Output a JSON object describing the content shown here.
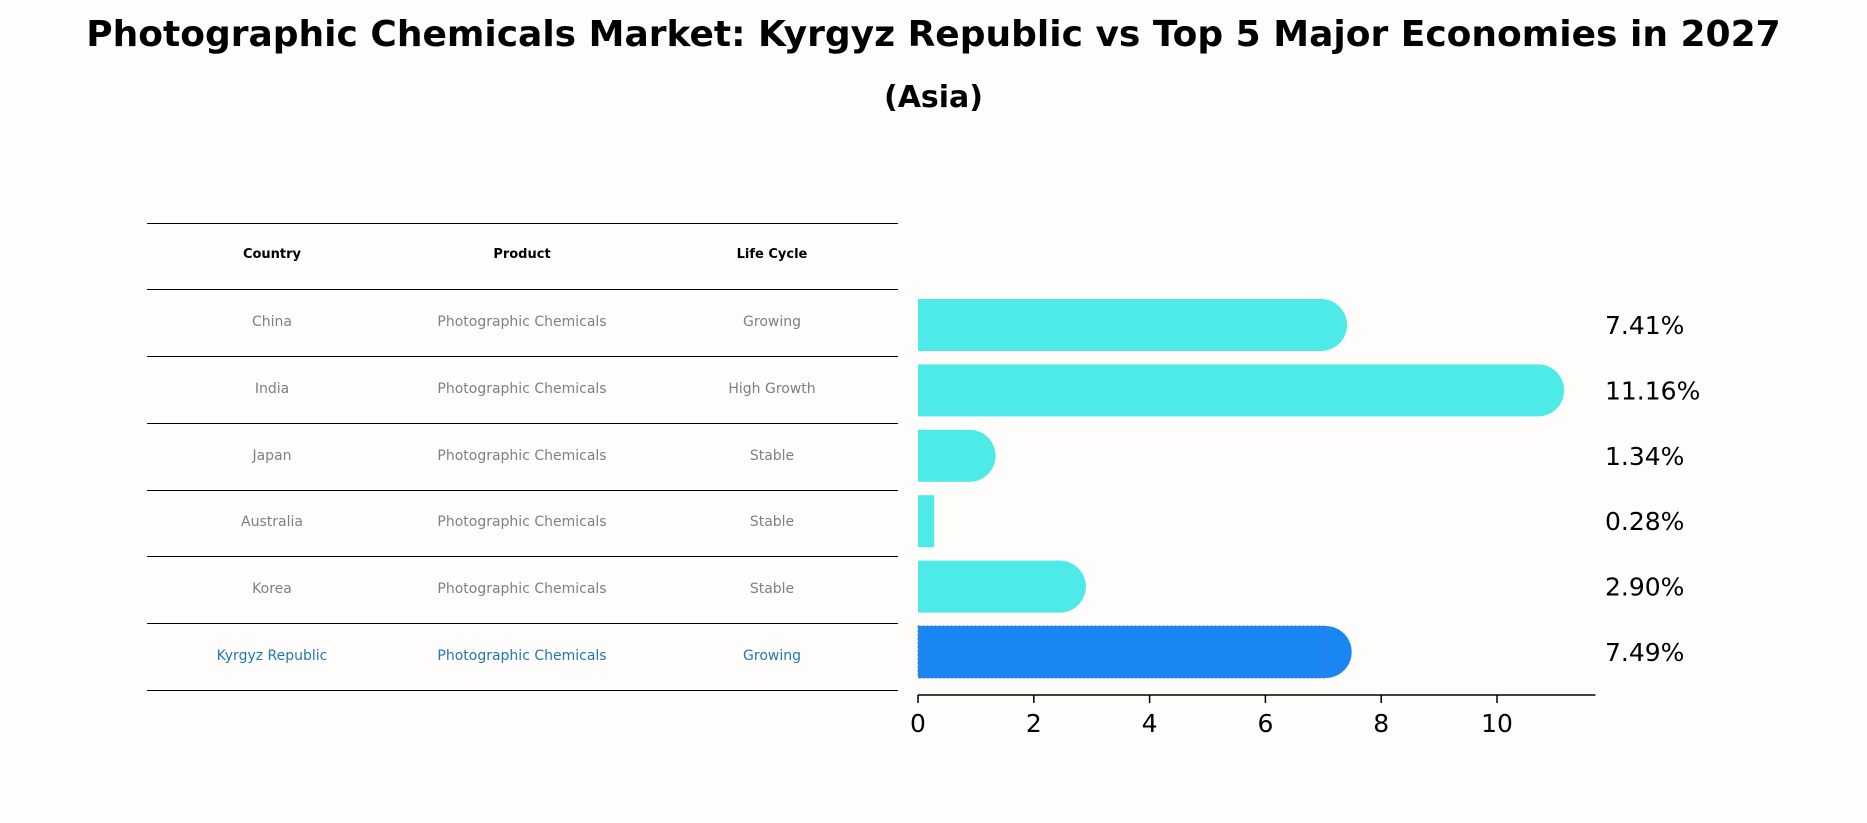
{
  "title": "Photographic Chemicals Market: Kyrgyz Republic vs Top 5 Major Economies in 2027",
  "subtitle": "(Asia)",
  "table": {
    "headers": [
      "Country",
      "Product",
      "Life Cycle"
    ],
    "rows": [
      [
        "China",
        "Photographic Chemicals",
        "Growing"
      ],
      [
        "India",
        "Photographic Chemicals",
        "High Growth"
      ],
      [
        "Japan",
        "Photographic Chemicals",
        "Stable"
      ],
      [
        "Australia",
        "Photographic Chemicals",
        "Stable"
      ],
      [
        "Korea",
        "Photographic Chemicals",
        "Stable"
      ],
      [
        "Kyrgyz Republic",
        "Photographic Chemicals",
        "Growing"
      ]
    ],
    "highlight_row": 5,
    "highlight_color": "#1f77b4",
    "text_color": "#808080"
  },
  "chart_data": {
    "type": "bar",
    "orientation": "horizontal",
    "categories": [
      "China",
      "India",
      "Japan",
      "Australia",
      "Korea",
      "Kyrgyz Republic"
    ],
    "values": [
      7.41,
      11.16,
      1.34,
      0.28,
      2.9,
      7.49
    ],
    "value_labels": [
      "7.41%",
      "11.16%",
      "1.34%",
      "0.28%",
      "2.90%",
      "7.49%"
    ],
    "xlim": [
      0,
      11.7
    ],
    "xticks": [
      0,
      2,
      4,
      6,
      8,
      10
    ],
    "xtick_labels": [
      "0",
      "2",
      "4",
      "6",
      "8",
      "10"
    ],
    "colors": [
      "#4deae8",
      "#4deae8",
      "#4deae8",
      "#4deae8",
      "#4deae8",
      "#1a86f4"
    ],
    "xlabel": "",
    "ylabel": "",
    "grid": false
  }
}
